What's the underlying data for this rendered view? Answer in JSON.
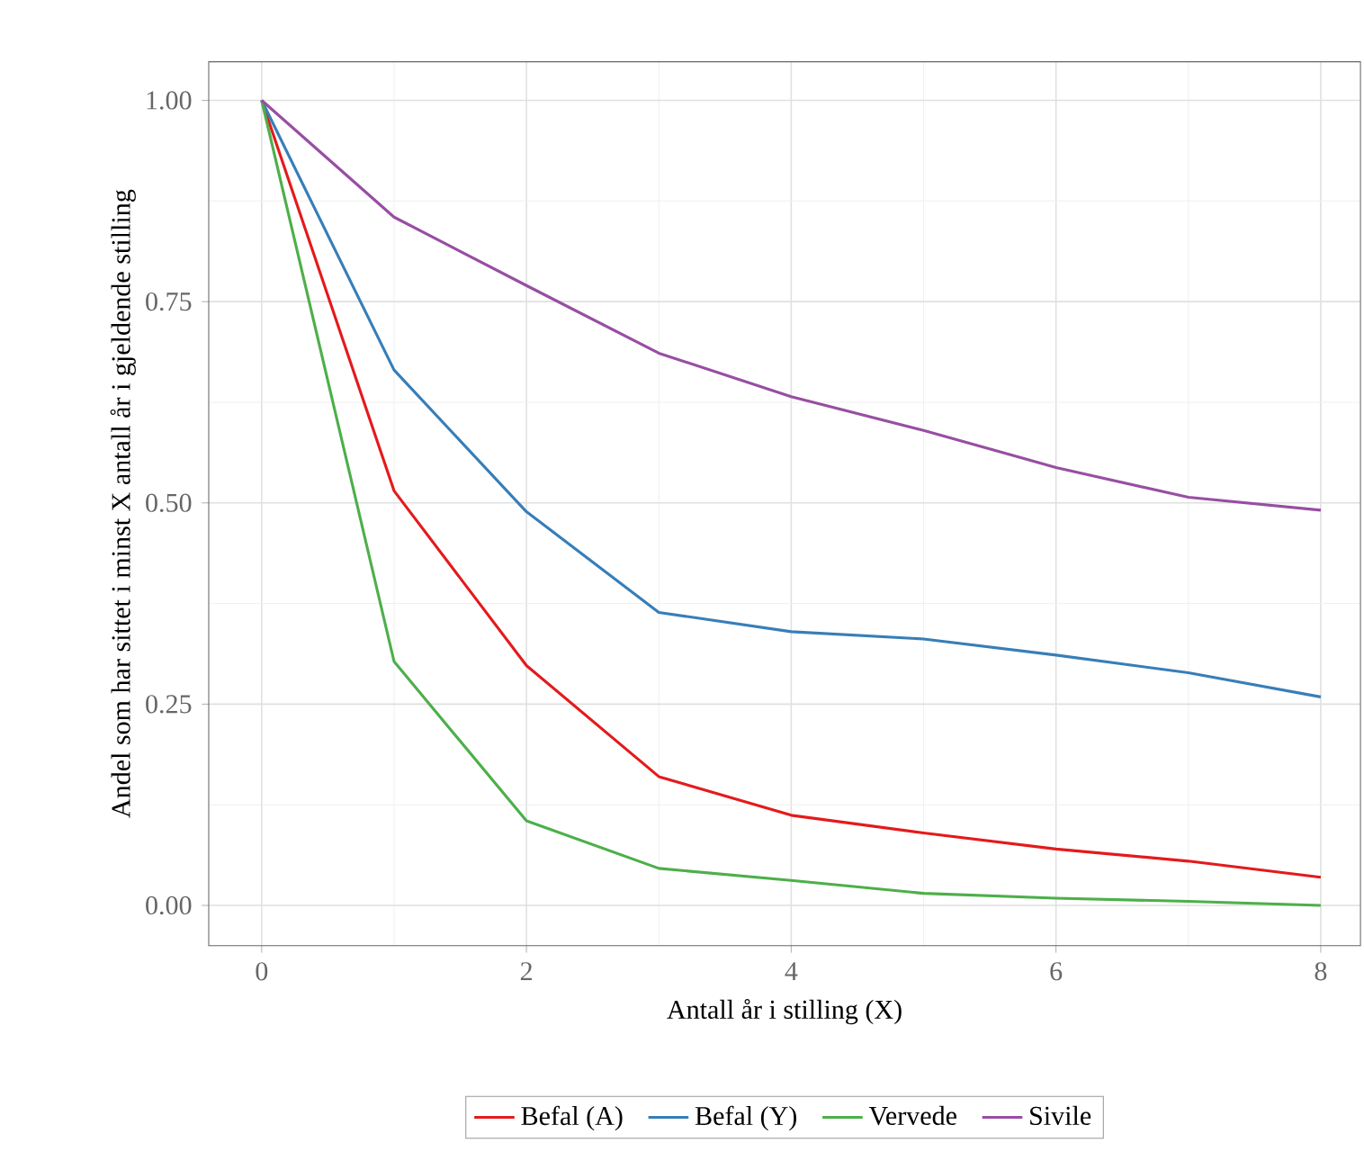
{
  "chart_data": {
    "type": "line",
    "xlabel": "Antall år i stilling (X)",
    "ylabel": "Andel som har sittet i minst X antall år i gjeldende stilling",
    "x": [
      0,
      1,
      2,
      3,
      4,
      5,
      6,
      7,
      8
    ],
    "series": [
      {
        "name": "Befal (A)",
        "color": "#e41a1c",
        "values": [
          1.0,
          0.515,
          0.298,
          0.16,
          0.112,
          0.09,
          0.07,
          0.055,
          0.035
        ]
      },
      {
        "name": "Befal (Y)",
        "color": "#377eb8",
        "values": [
          1.0,
          0.665,
          0.489,
          0.364,
          0.34,
          0.331,
          0.311,
          0.289,
          0.259
        ]
      },
      {
        "name": "Vervede",
        "color": "#4daf4a",
        "values": [
          1.0,
          0.303,
          0.105,
          0.046,
          0.031,
          0.015,
          0.009,
          0.005,
          0.0
        ]
      },
      {
        "name": "Sivile",
        "color": "#984ea3",
        "values": [
          1.0,
          0.855,
          0.77,
          0.686,
          0.632,
          0.59,
          0.544,
          0.507,
          0.491
        ]
      }
    ],
    "xlim": [
      -0.4,
      8.3
    ],
    "ylim": [
      -0.05,
      1.048
    ],
    "xticks": [
      0,
      2,
      4,
      6,
      8
    ],
    "yticks": [
      {
        "value": 0,
        "label": "0.00"
      },
      {
        "value": 0.25,
        "label": "0.25"
      },
      {
        "value": 0.5,
        "label": "0.50"
      },
      {
        "value": 0.75,
        "label": "0.75"
      },
      {
        "value": 1,
        "label": "1.00"
      }
    ],
    "grid": true,
    "legend": "bottom",
    "marker": "none",
    "line_style": "solid"
  }
}
